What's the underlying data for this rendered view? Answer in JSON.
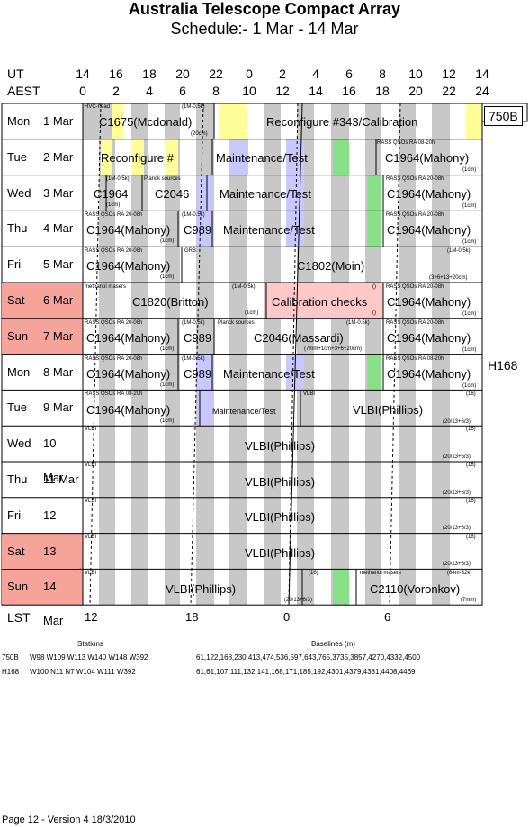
{
  "title": "Australia Telescope Compact Array",
  "subtitle": "Schedule:- 1  Mar - 14 Mar",
  "ut_label": "UT",
  "aest_label": "AEST",
  "lst_label": "LST",
  "ut_ticks": [
    "14",
    "16",
    "18",
    "20",
    "22",
    "0",
    "2",
    "4",
    "6",
    "8",
    "10",
    "12",
    "14"
  ],
  "aest_ticks": [
    "0",
    "2",
    "4",
    "6",
    "8",
    "10",
    "12",
    "14",
    "16",
    "18",
    "20",
    "22",
    "24"
  ],
  "lst_ticks": [
    "12",
    "18",
    "0",
    "6"
  ],
  "configs": {
    "c1": "750B",
    "c2": "H168"
  },
  "days": [
    {
      "d": "Mon",
      "n": "1 Mar",
      "weekend": false
    },
    {
      "d": "Tue",
      "n": "2 Mar",
      "weekend": false
    },
    {
      "d": "Wed",
      "n": "3 Mar",
      "weekend": false
    },
    {
      "d": "Thu",
      "n": "4 Mar",
      "weekend": false
    },
    {
      "d": "Fri",
      "n": "5 Mar",
      "weekend": false
    },
    {
      "d": "Sat",
      "n": "6 Mar",
      "weekend": true
    },
    {
      "d": "Sun",
      "n": "7 Mar",
      "weekend": true
    },
    {
      "d": "Mon",
      "n": "8 Mar",
      "weekend": false
    },
    {
      "d": "Tue",
      "n": "9 Mar",
      "weekend": false
    },
    {
      "d": "Wed",
      "n": "10 Mar",
      "weekend": false
    },
    {
      "d": "Thu",
      "n": "11 Mar",
      "weekend": false
    },
    {
      "d": "Fri",
      "n": "12 Mar",
      "weekend": false
    },
    {
      "d": "Sat",
      "n": "13 Mar",
      "weekend": true
    },
    {
      "d": "Sun",
      "n": "14 Mar",
      "weekend": true
    }
  ],
  "blocks": {
    "r0a": "C1675(Mcdonald)",
    "r0b": "Reconfigure #343/Calibration",
    "r1a": "Reconfigure #",
    "r1b": "Maintenance/Test",
    "r1c": "C1964(Mahony)",
    "r2a": "C1964",
    "r2b": "C2046",
    "r2c": "Maintenance/Test",
    "r2d": "C1964(Mahony)",
    "r3a": "C1964(Mahony)",
    "r3b": "C989",
    "r3c": "Maintenance/Test",
    "r3d": "C1964(Mahony)",
    "r4a": "C1964(Mahony)",
    "r4b": "C1802(Moin)",
    "r5a": "C1820(Britton)",
    "r5b": "Calibration checks",
    "r5c": "C1964(Mahony)",
    "r6a": "C1964(Mahony)",
    "r6b": "C989",
    "r6c": "C2046(Massardi)",
    "r6d": "C1964(Mahony)",
    "r7a": "C1964(Mahony)",
    "r7b": "C989",
    "r7c": "Maintenance/Test",
    "r7d": "C1964(Mahony)",
    "r8a": "C1964(Mahony)",
    "r8b": "Maintenance/Test",
    "r8c": "VLBI(Phillips)",
    "r9a": "VLBI(Phillips)",
    "r10a": "VLBI(Phillips)",
    "r11a": "VLBI(Phillips)",
    "r12a": "VLBI(Phillips)",
    "r13a": "VLBI(Phillips)",
    "r13b": "C2110(Voronkov)"
  },
  "notes": {
    "n0a": "HVC-head",
    "n0b": "(1M-0.5k)",
    "n0c": "(20cm)",
    "n1a": "RASS QSOs RA 08-20h",
    "n1b": "(1cm)",
    "n2a": "(1M-0.5k)",
    "n2b": "Planck sources",
    "n2c": "(1cm)",
    "n2d": "RASS QSOs RA 20-08h",
    "n2e": "(1cm)",
    "n3a": "RASS QSOs RA 20-08h",
    "n3b": "(1M-0.5k)",
    "n3c": "(1cm)",
    "n3d": "RASS QSOs RA 20-08h",
    "n3e": "(1cm)",
    "n4a": "RASS QSOs RA 20-08h",
    "n4b": "GRB",
    "n4c": "(1M-0.5k)",
    "n4d": "(1cm)",
    "n4e": "(3+6+13+20cm)",
    "n5a": "methanol masers",
    "n5b": "(1M-0.5k)",
    "n5c": "(1cm)",
    "n5d": "()",
    "n5e": "RASS QSOs RA 20-08h",
    "n5f": "()",
    "n5g": "(1cm)",
    "n6a": "RASS QSOs RA 20-08h",
    "n6b": "(1M-0.5k)",
    "n6c": "Planck sources",
    "n6d": "(1M-0.5k)",
    "n6e": "RASS QSOs RA 20-08h",
    "n6f": "(1cm)",
    "n6g": "(7mm+1cm+3+6+20cm)",
    "n6h": "(1cm)",
    "n7a": "RASS QSOs RA 20-08h",
    "n7b": "(1M-0.5k)",
    "n7c": "(1cm)",
    "n7d": "RASS QSOs RA 08-20h",
    "n7e": "(1cm)",
    "n8a": "RASS QSOs RA 08-20h",
    "n8b": "VLBI",
    "n8c": "(16)",
    "n8d": "(1cm)",
    "n8e": "(20/13+6/3)",
    "vlbi": "VLBI",
    "n16": "(16)",
    "n2013": "(20/13+6/3)",
    "n13a": "(16)",
    "n13b": "methanol masers",
    "n13c": "(64m-32k)",
    "n13d": "(20/13+6/3)",
    "n13e": "(7mm)"
  },
  "footer": {
    "stations_hdr": "Stations",
    "baselines_hdr": "Baselines (m)",
    "c1_name": "750B",
    "c1_stations": "W98 W109 W113 W140 W148 W392",
    "c1_baselines": "61,122,168,230,413,474,536,597,643,765,3735,3857,4270,4332,4500",
    "c2_name": "H168",
    "c2_stations": "W100 N11 N7 W104 W111 W392",
    "c2_baselines": "61,61,107,111,132,141,168,171,185,192,4301,4379,4381,4408,4469"
  },
  "page_footer": "Page 12 - Version 4  18/3/2010",
  "colors": {
    "weekend": "#f6a39a",
    "calib": "#ffff99",
    "maint": "#c8c8ff",
    "green": "#88e088",
    "pink": "#ffc8c8",
    "grey": "#c8c8c8"
  }
}
